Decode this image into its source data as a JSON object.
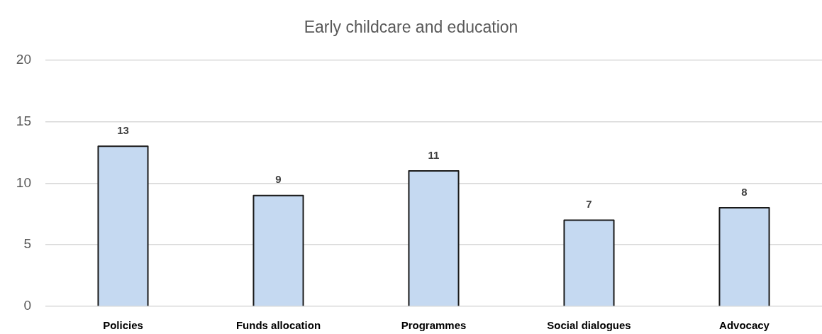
{
  "chart_data": {
    "type": "bar",
    "title": "Early childcare and education",
    "categories": [
      "Policies",
      "Funds allocation",
      "Programmes",
      "Social dialogues",
      "Advocacy"
    ],
    "values": [
      13,
      9,
      11,
      7,
      8
    ],
    "color": "#c5d9f1",
    "ylim": [
      0,
      20
    ],
    "yticks": [
      0,
      5,
      10,
      15,
      20
    ],
    "grid": "y",
    "legend": false,
    "data_labels": true
  }
}
